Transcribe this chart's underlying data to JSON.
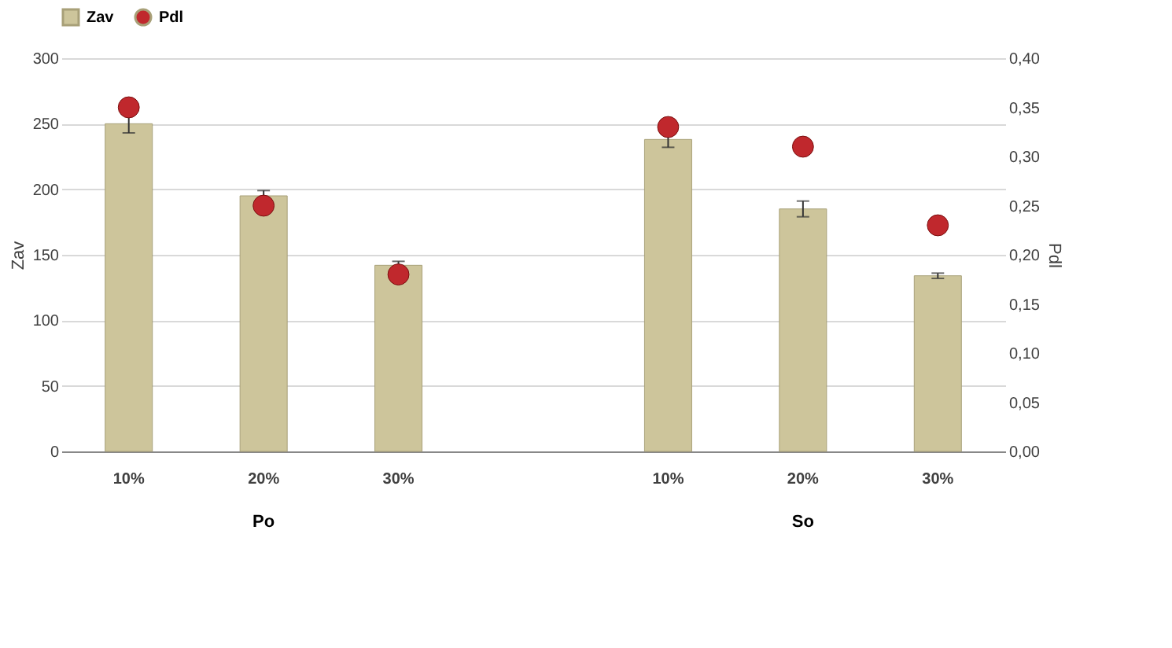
{
  "chart_data": {
    "type": "bar",
    "categories": [
      "10%",
      "20%",
      "30%",
      null,
      "10%",
      "20%",
      "30%"
    ],
    "series": [
      {
        "name": "Zav",
        "color": "#cdc59b",
        "values": [
          250,
          195,
          142,
          null,
          238,
          185,
          134
        ],
        "errors": [
          7,
          4,
          3,
          null,
          6,
          6,
          2
        ]
      },
      {
        "name": "Pdl",
        "type": "scatter",
        "axis": "y2",
        "color": "#c0282d",
        "marker": "circle",
        "values": [
          0.35,
          0.25,
          0.18,
          null,
          0.33,
          0.31,
          0.23
        ]
      }
    ],
    "ylabel": "Zav",
    "y2label": "Pdl",
    "ylim": [
      0,
      300
    ],
    "yticks": [
      0,
      50,
      100,
      150,
      200,
      250,
      300
    ],
    "y2lim": [
      0,
      0.4
    ],
    "y2ticks": [
      {
        "value": 0,
        "label": "0,00"
      },
      {
        "value": 0.05,
        "label": "0,05"
      },
      {
        "value": 0.1,
        "label": "0,10"
      },
      {
        "value": 0.15,
        "label": "0,15"
      },
      {
        "value": 0.2,
        "label": "0,20"
      },
      {
        "value": 0.25,
        "label": "0,25"
      },
      {
        "value": 0.3,
        "label": "0,30"
      },
      {
        "value": 0.35,
        "label": "0,35"
      },
      {
        "value": 0.4,
        "label": "0,40"
      }
    ],
    "grid": "y",
    "legend": "top",
    "annotations": [
      "Po",
      "So"
    ]
  }
}
